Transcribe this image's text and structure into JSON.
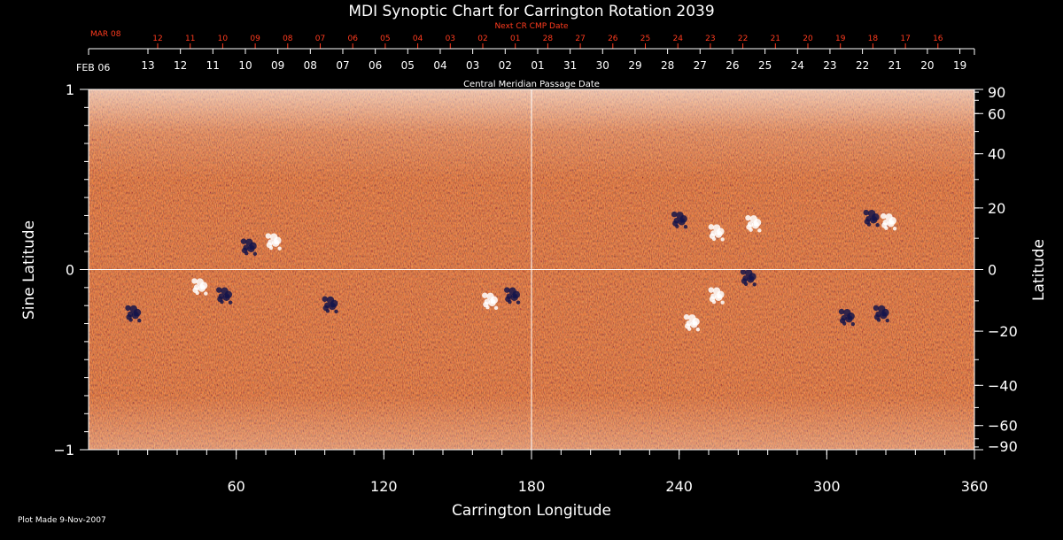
{
  "chart_data": {
    "type": "heatmap",
    "title": "MDI Synoptic Chart for Carrington Rotation 2039",
    "xlabel": "Carrington Longitude",
    "ylabel_left": "Sine Latitude",
    "ylabel_right": "Latitude",
    "xlim": [
      0,
      360
    ],
    "ylim": [
      -1,
      1
    ],
    "x_ticks": [
      60,
      120,
      180,
      240,
      300,
      360
    ],
    "y_left_ticks": [
      {
        "v": 1,
        "label": "1"
      },
      {
        "v": 0,
        "label": "0"
      },
      {
        "v": -1,
        "label": "−1"
      }
    ],
    "y_right_ticks": [
      {
        "deg": 90,
        "label": "90"
      },
      {
        "deg": 60,
        "label": "60"
      },
      {
        "deg": 40,
        "label": "40"
      },
      {
        "deg": 20,
        "label": "20"
      },
      {
        "deg": 0,
        "label": "0"
      },
      {
        "deg": -20,
        "label": "−20"
      },
      {
        "deg": -40,
        "label": "−40"
      },
      {
        "deg": -60,
        "label": "−60"
      },
      {
        "deg": -90,
        "label": "−90"
      }
    ],
    "cmp_axis_label": "Central Meridian Passage Date",
    "cmp_start_label": "FEB 06",
    "cmp_dates": [
      "13",
      "12",
      "11",
      "10",
      "09",
      "08",
      "07",
      "06",
      "05",
      "04",
      "03",
      "02",
      "01",
      "31",
      "30",
      "29",
      "28",
      "27",
      "26",
      "25",
      "24",
      "23",
      "22",
      "21",
      "20",
      "19"
    ],
    "next_cr_label": "Next CR CMP Date",
    "next_cr_start_label": "MAR 08",
    "next_cr_dates": [
      "12",
      "11",
      "10",
      "09",
      "08",
      "07",
      "06",
      "05",
      "04",
      "03",
      "02",
      "01",
      "28",
      "27",
      "26",
      "25",
      "24",
      "23",
      "22",
      "21",
      "20",
      "19",
      "18",
      "17",
      "16"
    ],
    "gridlines": {
      "longitude": 180,
      "sine_latitude": 0
    },
    "active_regions": [
      {
        "lon": 65,
        "sinlat": 0.12,
        "polarity": "negative"
      },
      {
        "lon": 75,
        "sinlat": 0.15,
        "polarity": "positive"
      },
      {
        "lon": 55,
        "sinlat": -0.15,
        "polarity": "negative"
      },
      {
        "lon": 45,
        "sinlat": -0.1,
        "polarity": "positive"
      },
      {
        "lon": 98,
        "sinlat": -0.2,
        "polarity": "negative"
      },
      {
        "lon": 163,
        "sinlat": -0.18,
        "polarity": "positive"
      },
      {
        "lon": 172,
        "sinlat": -0.15,
        "polarity": "negative"
      },
      {
        "lon": 240,
        "sinlat": 0.27,
        "polarity": "negative"
      },
      {
        "lon": 255,
        "sinlat": 0.2,
        "polarity": "positive"
      },
      {
        "lon": 270,
        "sinlat": 0.25,
        "polarity": "positive"
      },
      {
        "lon": 255,
        "sinlat": -0.15,
        "polarity": "positive"
      },
      {
        "lon": 245,
        "sinlat": -0.3,
        "polarity": "positive"
      },
      {
        "lon": 268,
        "sinlat": -0.05,
        "polarity": "negative"
      },
      {
        "lon": 318,
        "sinlat": 0.28,
        "polarity": "negative"
      },
      {
        "lon": 325,
        "sinlat": 0.26,
        "polarity": "positive"
      },
      {
        "lon": 308,
        "sinlat": -0.27,
        "polarity": "negative"
      },
      {
        "lon": 322,
        "sinlat": -0.25,
        "polarity": "negative"
      },
      {
        "lon": 18,
        "sinlat": -0.25,
        "polarity": "negative"
      }
    ],
    "colors": {
      "background": "#000000",
      "field_base": "#d9480a",
      "positive": "#ffffff",
      "negative": "#15154a",
      "accent_red": "#ff3b1e"
    }
  },
  "footer": {
    "plot_made": "Plot Made  9-Nov-2007"
  }
}
